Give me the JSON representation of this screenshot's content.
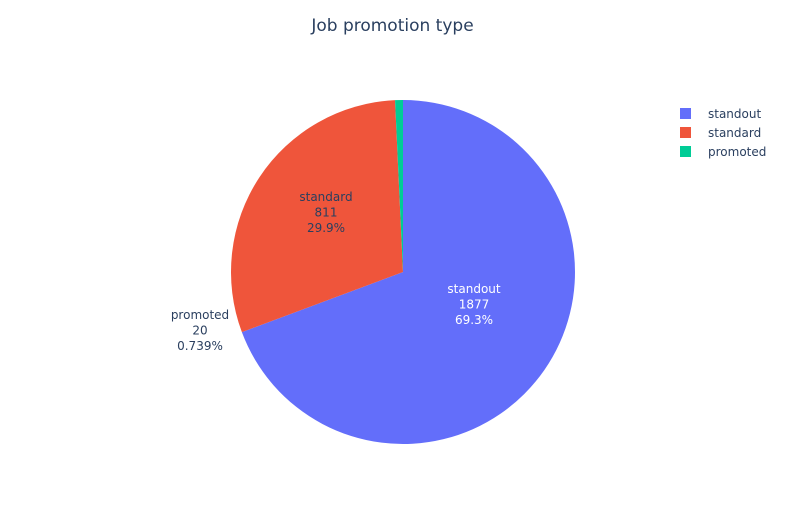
{
  "chart_data": {
    "type": "pie",
    "title": "Job promotion type",
    "slices": [
      {
        "label": "standout",
        "value": 1877,
        "percent": "69.3%",
        "color": "#636efa",
        "text_color": "#ffffff"
      },
      {
        "label": "standard",
        "value": 811,
        "percent": "29.9%",
        "color": "#ef553b",
        "text_color": "#2a3f5f"
      },
      {
        "label": "promoted",
        "value": 20,
        "percent": "0.739%",
        "color": "#00cc96",
        "text_color": "#2a3f5f"
      }
    ],
    "legend": {
      "position": "top-right",
      "items": [
        "standout",
        "standard",
        "promoted"
      ]
    }
  }
}
